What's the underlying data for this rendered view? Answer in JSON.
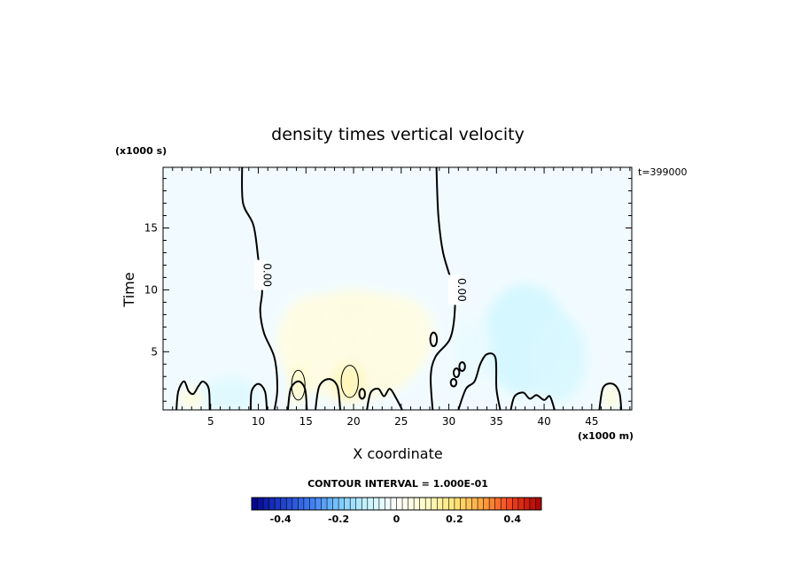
{
  "chart_data": {
    "type": "contour",
    "title": "density times vertical velocity",
    "xlabel": "X coordinate",
    "ylabel": "Time",
    "x_unit": "(x1000 m)",
    "y_unit": "(x1000 s)",
    "time_stamp": "t=399000",
    "xlim": [
      0,
      49.2
    ],
    "ylim": [
      0.3,
      19.9
    ],
    "x_ticks": [
      5,
      10,
      15,
      20,
      25,
      30,
      35,
      40,
      45
    ],
    "y_ticks": [
      5,
      10,
      15
    ],
    "contour_interval_text": "CONTOUR INTERVAL = 1.000E-01",
    "contour_labels": [
      "0.00",
      "0.00"
    ],
    "colorbar": {
      "range": [
        -0.5,
        0.5
      ],
      "ticks": [
        "-0.4",
        "-0.2",
        "0",
        "0.2",
        "0.4"
      ],
      "tick_values": [
        -0.4,
        -0.2,
        0,
        0.2,
        0.4
      ],
      "n_levels": 50,
      "colors": [
        "#00008b",
        "#1e3cc8",
        "#3c78f0",
        "#78c8ff",
        "#c8f5ff",
        "#ffffff",
        "#fffac8",
        "#ffe678",
        "#ffa03c",
        "#f03c1e",
        "#aa0000"
      ]
    },
    "zero_contours": [
      {
        "name": "left-main",
        "points": [
          [
            8.3,
            19.9
          ],
          [
            8.4,
            17.0
          ],
          [
            9.5,
            15.2
          ],
          [
            10.0,
            12.5
          ],
          [
            10.4,
            10.0
          ],
          [
            10.2,
            8.3
          ],
          [
            10.6,
            6.5
          ],
          [
            11.7,
            4.5
          ],
          [
            12.0,
            2.0
          ],
          [
            11.7,
            0.3
          ]
        ]
      },
      {
        "name": "right-main",
        "points": [
          [
            28.7,
            19.9
          ],
          [
            28.9,
            16.0
          ],
          [
            29.4,
            13.0
          ],
          [
            30.5,
            10.0
          ],
          [
            30.6,
            8.0
          ],
          [
            30.1,
            6.0
          ],
          [
            28.6,
            4.6
          ],
          [
            28.1,
            3.0
          ],
          [
            28.3,
            0.3
          ]
        ]
      },
      {
        "name": "lobe-a",
        "points": [
          [
            1.4,
            0.3
          ],
          [
            1.6,
            1.8
          ],
          [
            2.2,
            2.6
          ],
          [
            2.7,
            1.8
          ],
          [
            3.2,
            1.6
          ],
          [
            3.7,
            2.2
          ],
          [
            4.2,
            2.6
          ],
          [
            4.8,
            2.0
          ],
          [
            4.9,
            0.3
          ]
        ]
      },
      {
        "name": "lobe-b",
        "points": [
          [
            9.2,
            0.3
          ],
          [
            9.3,
            1.8
          ],
          [
            10.0,
            2.4
          ],
          [
            10.7,
            1.8
          ],
          [
            10.9,
            0.3
          ]
        ]
      },
      {
        "name": "lobe-c",
        "points": [
          [
            13.1,
            0.3
          ],
          [
            13.4,
            2.0
          ],
          [
            14.2,
            2.6
          ],
          [
            14.9,
            2.0
          ],
          [
            15.1,
            0.3
          ]
        ]
      },
      {
        "name": "lobe-d",
        "points": [
          [
            16.0,
            0.3
          ],
          [
            16.4,
            2.2
          ],
          [
            17.4,
            2.8
          ],
          [
            18.3,
            2.2
          ],
          [
            18.6,
            0.3
          ]
        ]
      },
      {
        "name": "lobe-e",
        "points": [
          [
            21.4,
            0.3
          ],
          [
            21.8,
            1.7
          ],
          [
            22.6,
            2.0
          ],
          [
            23.2,
            1.4
          ],
          [
            23.8,
            2.0
          ],
          [
            24.5,
            1.2
          ],
          [
            25.1,
            0.3
          ]
        ]
      },
      {
        "name": "lobe-f",
        "points": [
          [
            31.0,
            0.3
          ],
          [
            31.8,
            2.0
          ],
          [
            32.7,
            2.6
          ],
          [
            33.3,
            4.0
          ],
          [
            34.0,
            4.8
          ],
          [
            34.9,
            4.5
          ],
          [
            35.0,
            2.0
          ],
          [
            35.4,
            0.3
          ]
        ]
      },
      {
        "name": "lobe-g",
        "points": [
          [
            36.5,
            0.3
          ],
          [
            36.9,
            1.4
          ],
          [
            37.8,
            1.7
          ],
          [
            38.5,
            1.2
          ],
          [
            39.2,
            1.5
          ],
          [
            40.0,
            1.1
          ],
          [
            40.6,
            1.4
          ],
          [
            41.1,
            0.3
          ]
        ]
      },
      {
        "name": "lobe-h",
        "points": [
          [
            45.8,
            0.3
          ],
          [
            46.2,
            2.1
          ],
          [
            47.2,
            2.4
          ],
          [
            47.9,
            1.7
          ],
          [
            48.1,
            0.3
          ]
        ]
      }
    ],
    "closed_contours": [
      {
        "name": "ring-1",
        "cx": 14.2,
        "cy": 2.3,
        "rx": 0.7,
        "ry": 1.2,
        "level": 0.1
      },
      {
        "name": "ring-2",
        "cx": 19.6,
        "cy": 2.6,
        "rx": 0.9,
        "ry": 1.3,
        "level": 0.1
      },
      {
        "name": "ring-3",
        "cx": 20.9,
        "cy": 1.6,
        "rx": 0.3,
        "ry": 0.4,
        "level": 0
      },
      {
        "name": "ring-4",
        "cx": 28.4,
        "cy": 6.0,
        "rx": 0.35,
        "ry": 0.55,
        "level": 0
      },
      {
        "name": "ring-5",
        "cx": 30.8,
        "cy": 3.3,
        "rx": 0.3,
        "ry": 0.35,
        "level": 0
      },
      {
        "name": "ring-6",
        "cx": 31.4,
        "cy": 3.8,
        "rx": 0.3,
        "ry": 0.35,
        "level": 0
      },
      {
        "name": "ring-7",
        "cx": 30.5,
        "cy": 2.5,
        "rx": 0.3,
        "ry": 0.3,
        "level": 0
      }
    ],
    "fill_regions": [
      {
        "cx": 20.0,
        "cy": 5.5,
        "rx": 7.5,
        "ry": 4.5,
        "value": 0.06
      },
      {
        "cx": 24.5,
        "cy": 6.5,
        "rx": 4.0,
        "ry": 3.0,
        "value": 0.05
      },
      {
        "cx": 15.5,
        "cy": 6.0,
        "rx": 3.5,
        "ry": 3.5,
        "value": 0.05
      },
      {
        "cx": 19.5,
        "cy": 2.5,
        "rx": 1.5,
        "ry": 1.5,
        "value": 0.12
      },
      {
        "cx": 14.2,
        "cy": 2.3,
        "rx": 1.0,
        "ry": 1.5,
        "value": 0.1
      },
      {
        "cx": 38.0,
        "cy": 6.0,
        "rx": 4.5,
        "ry": 4.5,
        "value": -0.08
      },
      {
        "cx": 41.5,
        "cy": 4.5,
        "rx": 3.0,
        "ry": 3.5,
        "value": -0.07
      },
      {
        "cx": 7.0,
        "cy": 1.5,
        "rx": 3.0,
        "ry": 1.5,
        "value": -0.06
      },
      {
        "cx": 32.5,
        "cy": 5.0,
        "rx": 2.0,
        "ry": 2.5,
        "value": -0.04
      },
      {
        "cx": 3.0,
        "cy": 1.2,
        "rx": 1.2,
        "ry": 0.9,
        "value": 0.06
      },
      {
        "cx": 47.0,
        "cy": 1.3,
        "rx": 0.8,
        "ry": 1.0,
        "value": 0.07
      }
    ]
  }
}
